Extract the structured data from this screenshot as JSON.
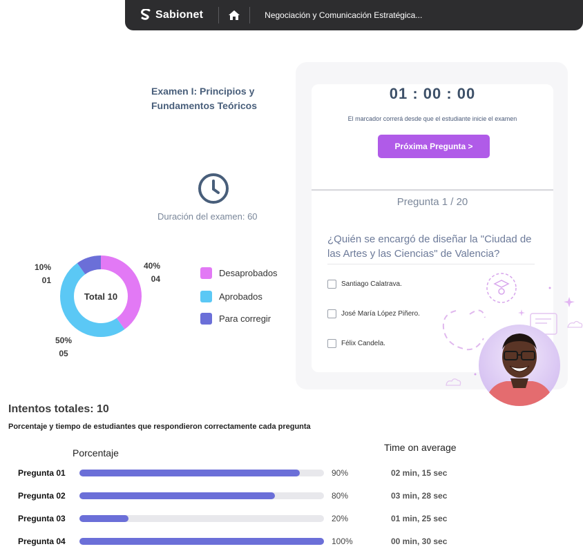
{
  "topbar": {
    "brand": "Sabionet",
    "breadcrumb": "Negociación y Comunicación Estratégica..."
  },
  "exam": {
    "title": "Examen I: Principios y Fundamentos Teóricos",
    "duration_label": "Duración del examen: 60"
  },
  "timer": {
    "value": "01 : 00 : 00",
    "note": "El marcador correrá desde que el estudiante inicie el examen",
    "next_button": "Próxima Pregunta >"
  },
  "question": {
    "counter": "Pregunta 1 / 20",
    "text": "¿Quién se encargó de diseñar la \"Ciudad de las Artes y las Ciencias\" de Valencia?",
    "options": [
      "Santiago Calatrava.",
      "José María López Piñero.",
      "Félix Candela."
    ]
  },
  "chart_data": {
    "type": "pie",
    "center_label": "Total 10",
    "slices": [
      {
        "label": "Desaprobados",
        "percent": 40,
        "count": "04",
        "percent_label": "40%",
        "color": "#e279f5"
      },
      {
        "label": "Aprobados",
        "percent": 50,
        "count": "05",
        "percent_label": "50%",
        "color": "#5bc8f5"
      },
      {
        "label": "Para corregir",
        "percent": 10,
        "count": "01",
        "percent_label": "10%",
        "color": "#6b6fd8"
      }
    ]
  },
  "stats": {
    "attempts": "Intentos totales: 10",
    "subtitle": "Porcentaje y tiempo de estudiantes que respondieron correctamente cada pregunta",
    "col_percent": "Porcentaje",
    "col_time": "Time on average",
    "rows": [
      {
        "label": "Pregunta 01",
        "value": 90,
        "pct": "90%",
        "time": "02 min, 15 sec"
      },
      {
        "label": "Pregunta 02",
        "value": 80,
        "pct": "80%",
        "time": "03 min, 28 sec"
      },
      {
        "label": "Pregunta 03",
        "value": 20,
        "pct": "20%",
        "time": "01 min, 25 sec"
      },
      {
        "label": "Pregunta 04",
        "value": 100,
        "pct": "100%",
        "time": "00 min, 30 sec"
      }
    ]
  },
  "colors": {
    "accent": "#b05be8",
    "topbar": "#2d2d2f",
    "bar": "#6b6fd8"
  }
}
